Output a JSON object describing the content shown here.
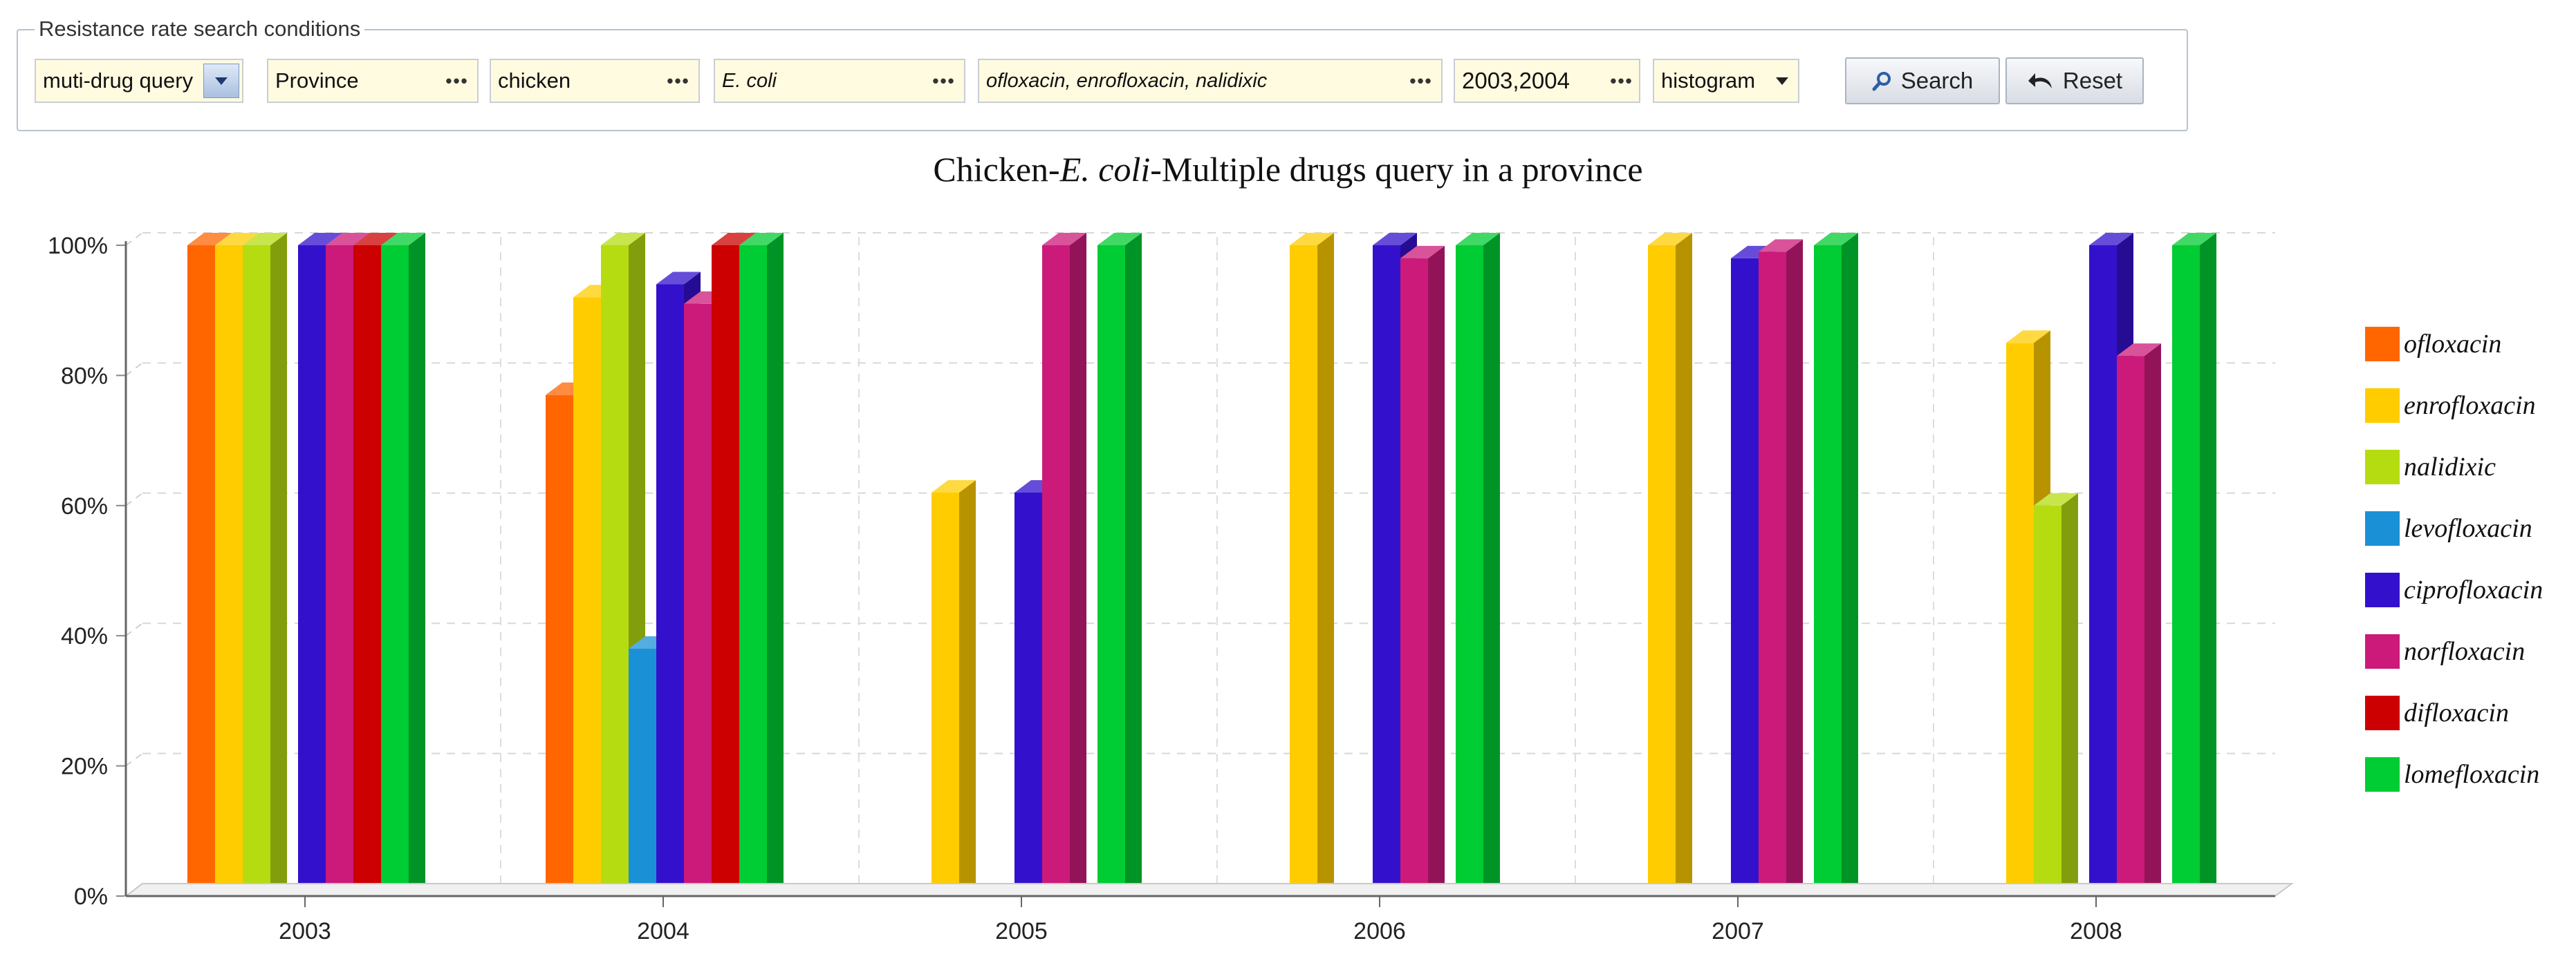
{
  "search_panel": {
    "legend": "Resistance rate search conditions",
    "query_type": "muti-drug query",
    "region": "Province",
    "animal": "chicken",
    "bacteria": "E. coli",
    "drugs": "ofloxacin, enrofloxacin, nalidixic",
    "years": "2003,2004",
    "chart_type": "histogram",
    "search_label": "Search",
    "reset_label": "Reset",
    "more_glyph": "•••"
  },
  "chart_title": {
    "prefix": "Chicken-",
    "italic": "E. coli",
    "suffix": "-Multiple drugs query in a province"
  },
  "chart_data": {
    "type": "bar",
    "title": "Chicken-E. coli-Multiple drugs query in a province",
    "categories": [
      "2003",
      "2004",
      "2005",
      "2006",
      "2007",
      "2008"
    ],
    "ylim": [
      0,
      100
    ],
    "y_ticks": [
      0,
      20,
      40,
      60,
      80,
      100
    ],
    "y_tick_labels": [
      "0%",
      "20%",
      "40%",
      "60%",
      "80%",
      "100%"
    ],
    "legend_position": "right",
    "series": [
      {
        "name": "ofloxacin",
        "color": "#ff6600",
        "values": [
          100,
          77,
          0,
          0,
          0,
          0
        ]
      },
      {
        "name": "enrofloxacin",
        "color": "#ffcc00",
        "values": [
          100,
          92,
          62,
          100,
          100,
          85
        ]
      },
      {
        "name": "nalidixic",
        "color": "#b5dc10",
        "values": [
          100,
          100,
          0,
          0,
          0,
          60
        ]
      },
      {
        "name": "levofloxacin",
        "color": "#1a91d6",
        "values": [
          0,
          38,
          0,
          0,
          0,
          0
        ]
      },
      {
        "name": "ciprofloxacin",
        "color": "#3311cc",
        "values": [
          100,
          94,
          62,
          100,
          98,
          100
        ]
      },
      {
        "name": "norfloxacin",
        "color": "#cc1a7a",
        "values": [
          100,
          91,
          100,
          98,
          99,
          83
        ]
      },
      {
        "name": "difloxacin",
        "color": "#cc0000",
        "values": [
          100,
          100,
          0,
          0,
          0,
          0
        ]
      },
      {
        "name": "lomefloxacin",
        "color": "#00cc33",
        "values": [
          100,
          100,
          100,
          100,
          100,
          100
        ]
      }
    ]
  }
}
